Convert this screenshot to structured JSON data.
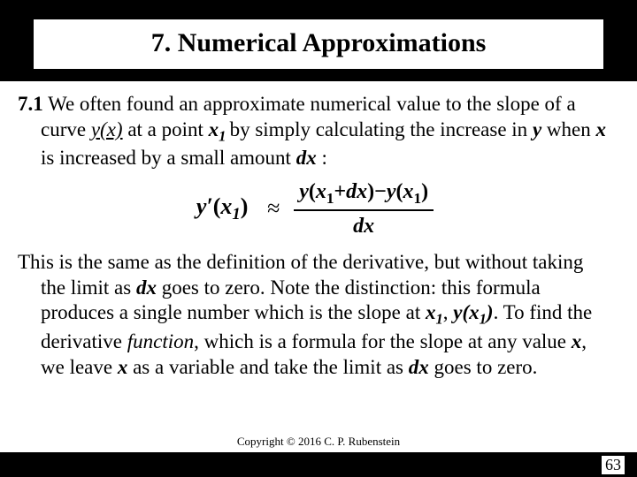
{
  "title": "7. Numerical Approximations",
  "section_label": "7.1",
  "para1_a": " We often found an approximate numerical value to the slope of a curve ",
  "para1_yx": "y(x)",
  "para1_b": " at a point ",
  "para1_x": "x",
  "para1_sub1": "1 ",
  "para1_c": "by simply calculating the increase in ",
  "para1_y": "y",
  "para1_d": " when ",
  "para1_x2": "x",
  "para1_e": " is increased by a small amount ",
  "para1_dx": "dx",
  "para1_f": " :",
  "formula": {
    "lhs_y": "y",
    "lhs_prime": "′",
    "lhs_open": "(",
    "lhs_x": "x",
    "lhs_sub": "1",
    "lhs_close": ")",
    "approx": "≈",
    "num_y1": "y",
    "num_open1": "(",
    "num_x1": "x",
    "num_sub1": "1",
    "num_plus": "+",
    "num_dx": "dx",
    "num_close1": ")",
    "num_minus": "−",
    "num_y2": "y",
    "num_open2": "(",
    "num_x2": "x",
    "num_sub2": "1",
    "num_close2": ")",
    "den": "dx"
  },
  "para2_a": "This is the same as the definition of the derivative, but without taking the limit as ",
  "para2_dx1": "dx",
  "para2_b": " goes to zero. Note the distinction: this formula produces a single number which is the slope at ",
  "para2_x1": "x",
  "para2_sub1": "1",
  "para2_c": ", ",
  "para2_yx1": "y(x",
  "para2_sub2": "1",
  "para2_yx1b": ")",
  "para2_d": ". To find the derivative ",
  "para2_func": "function",
  "para2_e": ", which is a formula for the slope at any value ",
  "para2_x2": "x",
  "para2_f": ", we leave ",
  "para2_x3": "x",
  "para2_g": " as a variable and take the limit as ",
  "para2_dx2": "dx",
  "para2_h": " goes to zero.",
  "copyright": "Copyright © 2016 C. P. Rubenstein",
  "page": "63"
}
